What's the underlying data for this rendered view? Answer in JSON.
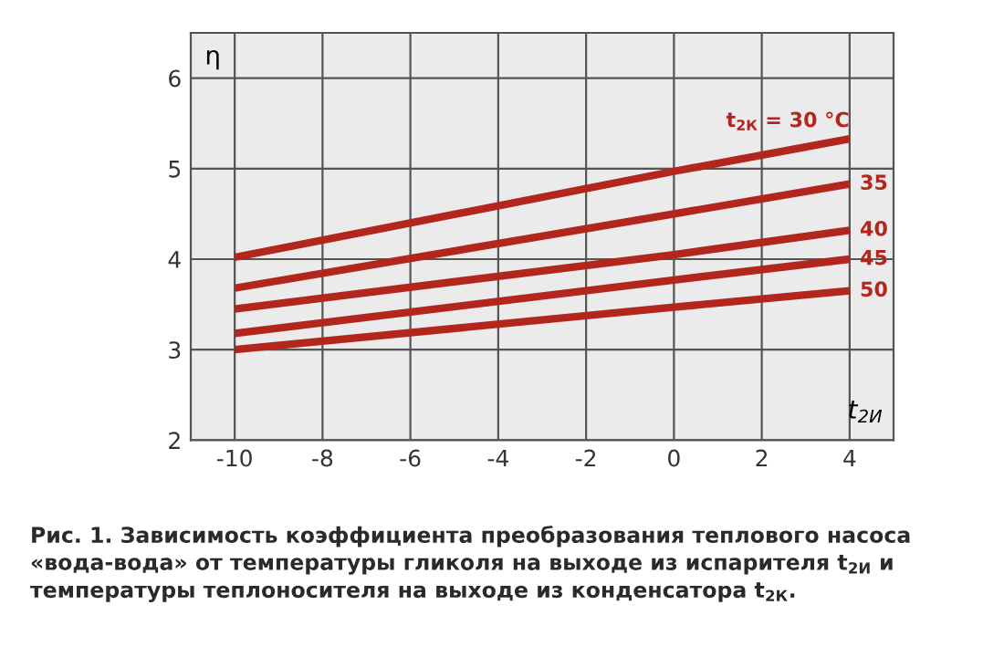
{
  "chart_data": {
    "type": "line",
    "xlabel": "t$_{2И}$",
    "ylabel": "η",
    "x": [
      -10,
      0,
      4
    ],
    "series": [
      {
        "name": "t$_{2К}$ = 30 °C",
        "color": "#b3261e",
        "values": [
          4.02,
          4.97,
          5.33
        ]
      },
      {
        "name": "35",
        "color": "#b3261e",
        "values": [
          3.68,
          4.5,
          4.83
        ]
      },
      {
        "name": "40",
        "color": "#b3261e",
        "values": [
          3.45,
          4.05,
          4.32
        ]
      },
      {
        "name": "45",
        "color": "#b3261e",
        "values": [
          3.18,
          3.77,
          4.0
        ]
      },
      {
        "name": "50",
        "color": "#b3261e",
        "values": [
          3.0,
          3.47,
          3.65
        ]
      }
    ],
    "xlim": [
      -11,
      5
    ],
    "ylim": [
      2,
      6.5
    ],
    "xticks": [
      -10,
      -8,
      -6,
      -4,
      -2,
      0,
      2,
      4
    ],
    "yticks": [
      2,
      3,
      4,
      5,
      6
    ],
    "grid": true,
    "marker": "none",
    "line_style": "solid",
    "annotations": [
      "Рис. 1. Зависимость коэффициента преобразования теплового насоса «вода-вода» от температуры гликоля на выходе из испарителя t$_{2И}$ и температуры теплоносителя на выходе из конденсатора t$_{2К}$."
    ]
  }
}
